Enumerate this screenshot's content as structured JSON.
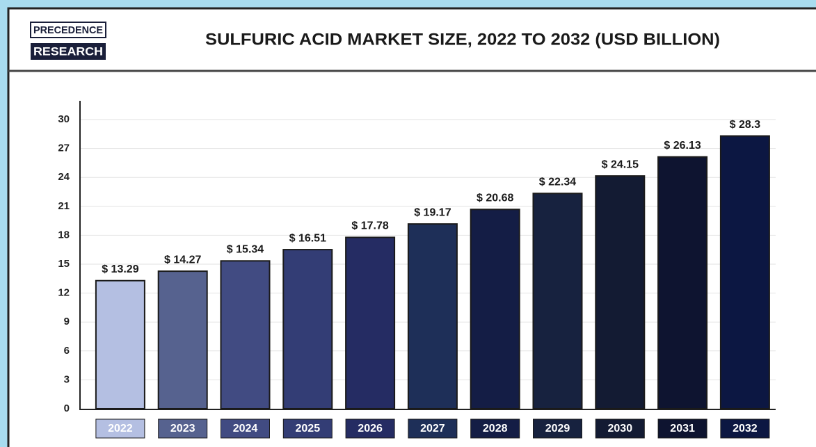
{
  "header": {
    "logo": [
      "PRECEDENCE",
      "RESEARCH"
    ]
  },
  "chart_data": {
    "type": "bar",
    "title": "SULFURIC ACID MARKET SIZE, 2022 TO 2032 (USD BILLION)",
    "categories": [
      "2022",
      "2023",
      "2024",
      "2025",
      "2026",
      "2027",
      "2028",
      "2029",
      "2030",
      "2031",
      "2032"
    ],
    "values": [
      13.29,
      14.27,
      15.34,
      16.51,
      17.78,
      19.17,
      20.68,
      22.34,
      24.15,
      26.13,
      28.3
    ],
    "value_labels": [
      "$ 13.29",
      "$ 14.27",
      "$ 15.34",
      "$ 16.51",
      "$ 17.78",
      "$ 19.17",
      "$ 20.68",
      "$ 22.34",
      "$ 24.15",
      "$ 26.13",
      "$ 28.3"
    ],
    "colors": [
      "#b4bfe2",
      "#56628f",
      "#414b82",
      "#333d75",
      "#252c63",
      "#1e2f58",
      "#141d45",
      "#17223f",
      "#131b33",
      "#0e1430",
      "#0c1742"
    ],
    "ylim": [
      0,
      30
    ],
    "yticks": [
      0,
      3,
      6,
      9,
      12,
      15,
      18,
      21,
      24,
      27,
      30
    ],
    "grid": true
  }
}
